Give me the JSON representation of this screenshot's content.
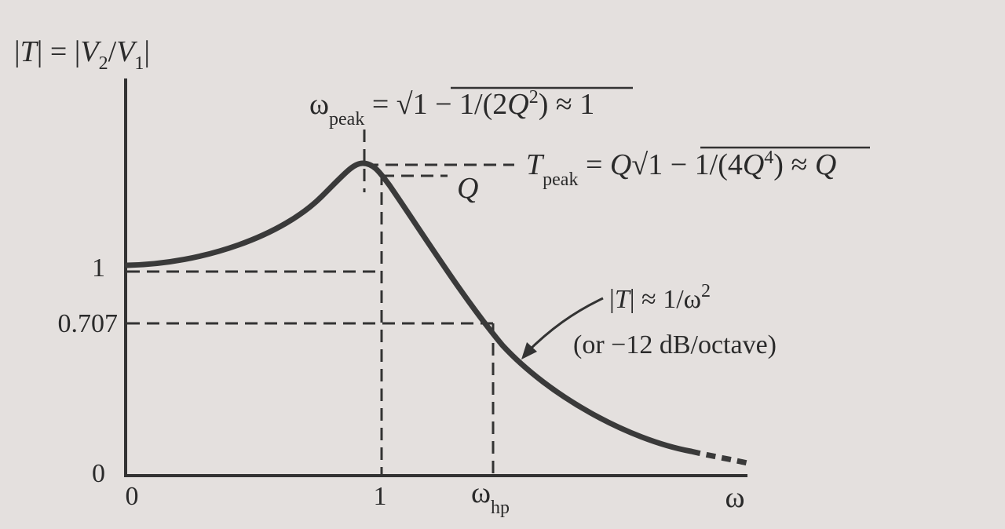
{
  "figure": {
    "y_axis_label": "|T| = |V2/V1|",
    "x_axis_label": "ω",
    "peak_freq_eq": "ωpeak = √1 − 1/(2Q²) ≈ 1",
    "peak_mag_eq": "Tpeak = Q√1 − 1/(4Q⁴) ≈ Q",
    "q_label": "Q",
    "rolloff_eq": "|T| ≈ 1/ω²",
    "rolloff_note": "(or −12 dB/octave)",
    "ticks_y": [
      "1",
      "0.707",
      "0"
    ],
    "ticks_x": [
      "0",
      "1",
      "ωhp"
    ]
  },
  "colors": {
    "background": "#e4e0de",
    "ink": "#2a2a2a"
  }
}
